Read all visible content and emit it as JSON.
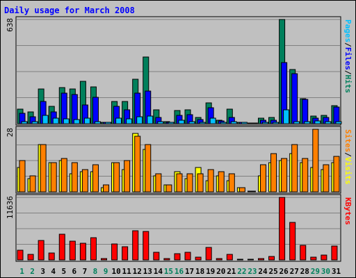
{
  "chart_data": {
    "type": "bar",
    "title": "Daily usage for March 2008",
    "days": [
      "1",
      "2",
      "3",
      "4",
      "5",
      "6",
      "7",
      "8",
      "9",
      "10",
      "11",
      "12",
      "13",
      "14",
      "15",
      "16",
      "17",
      "18",
      "19",
      "20",
      "21",
      "22",
      "23",
      "24",
      "25",
      "26",
      "27",
      "28",
      "29",
      "30",
      "31"
    ],
    "weekend_days": [
      "1",
      "2",
      "8",
      "9",
      "15",
      "16",
      "22",
      "23",
      "29",
      "30"
    ],
    "colors": {
      "panel_bg": "#c0c0c0",
      "hits": "#00805c",
      "files": "#0000ff",
      "pages": "#00c0ff",
      "visits": "#ffff00",
      "sites": "#ff8000",
      "kbytes": "#ff0000",
      "title": "#0000ff",
      "weekday": "#000000",
      "weekend": "#00805c",
      "separator": "#000000"
    },
    "panels": [
      {
        "id": "hits",
        "ymax_label": "638",
        "ymax": 638,
        "right_label": [
          {
            "text": "Pages",
            "color": "#00c0ff"
          },
          {
            "text": "/",
            "color": "#000000"
          },
          {
            "text": "Files",
            "color": "#0000ff"
          },
          {
            "text": "/",
            "color": "#000000"
          },
          {
            "text": "Hits",
            "color": "#00805c"
          }
        ],
        "series": [
          {
            "name": "Hits",
            "color": "#00805c",
            "values": [
              90,
              74,
              212,
              108,
              222,
              214,
              258,
              224,
              9,
              138,
              134,
              272,
              410,
              86,
              13,
              82,
              87,
              39,
              128,
              23,
              90,
              9,
              0,
              34,
              38,
              638,
              332,
              152,
              46,
              51,
              112
            ]
          },
          {
            "name": "Files",
            "color": "#0000ff",
            "values": [
              64,
              44,
              137,
              74,
              188,
              178,
              115,
              162,
              4,
              108,
              85,
              188,
              198,
              40,
              3,
              52,
              54,
              26,
              96,
              15,
              39,
              4,
              0,
              22,
              21,
              373,
              305,
              150,
              34,
              38,
              104
            ]
          },
          {
            "name": "Pages",
            "color": "#00c0ff",
            "values": [
              14,
              11,
              50,
              36,
              30,
              25,
              32,
              13,
              1,
              35,
              30,
              44,
              48,
              12,
              2,
              21,
              13,
              6,
              33,
              6,
              11,
              3,
              0,
              8,
              8,
              86,
              14,
              13,
              16,
              13,
              13
            ]
          }
        ]
      },
      {
        "id": "visits",
        "ymax_label": "28",
        "ymax": 28,
        "right_label": [
          {
            "text": "Sites",
            "color": "#ff8000"
          },
          {
            "text": "/",
            "color": "#000000"
          },
          {
            "text": "Visits",
            "color": "#ffff00"
          }
        ],
        "series": [
          {
            "name": "Visits",
            "color": "#ffff00",
            "values": [
              11,
              6,
              21,
              13,
              14,
              8,
              9,
              9,
              2,
              13,
              10,
              26,
              19,
              7,
              3,
              9,
              6,
              11,
              5,
              7,
              5,
              2,
              0,
              7,
              13,
              14,
              17,
              13,
              11,
              10,
              13
            ]
          },
          {
            "name": "Sites",
            "color": "#ff8000",
            "values": [
              14,
              7,
              21,
              13,
              15,
              13,
              10,
              12,
              3,
              13,
              14,
              25,
              21,
              8,
              3,
              8,
              8,
              8,
              10,
              9,
              8,
              2,
              0,
              12,
              17,
              15,
              21,
              15,
              28,
              12,
              16
            ]
          }
        ]
      },
      {
        "id": "kbytes",
        "ymax_label": "11636",
        "ymax": 11636,
        "right_label": [
          {
            "text": "KBytes",
            "color": "#ff0000"
          }
        ],
        "series": [
          {
            "name": "KBytes",
            "color": "#ff0000",
            "values": [
              1768,
              1014,
              3557,
              1302,
              4739,
              3485,
              3104,
              4143,
              126,
              3018,
              2484,
              5430,
              5253,
              1380,
              191,
              1177,
              1486,
              501,
              2366,
              264,
              1052,
              0,
              0,
              253,
              609,
              11636,
              7003,
              2687,
              548,
              845,
              2646
            ]
          }
        ]
      }
    ]
  }
}
